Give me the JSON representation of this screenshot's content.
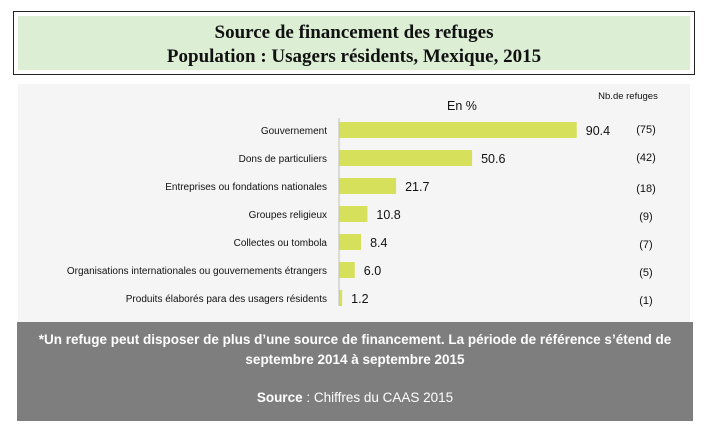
{
  "header": {
    "title_line1": "Source de financement des refuges",
    "title_line2": "Population : Usagers résidents, Mexique, 2015"
  },
  "chart_data": {
    "type": "bar",
    "orientation": "horizontal",
    "unit_label": "En %",
    "count_header": "Nb.de refuges",
    "categories": [
      "Gouvernement",
      "Dons de particuliers",
      "Entreprises ou fondations nationales",
      "Groupes religieux",
      "Collectes ou tombola",
      "Organisations internationales ou gouvernements étrangers",
      "Produits élaborés para des usagers résidents"
    ],
    "values": [
      90.4,
      50.6,
      21.7,
      10.8,
      8.4,
      6.0,
      1.2
    ],
    "value_labels": [
      "90.4",
      "50.6",
      "21.7",
      "10.8",
      "8.4",
      "6.0",
      "1.2"
    ],
    "counts": [
      "(75)",
      "(42)",
      "(18)",
      "(9)",
      "(7)",
      "(5)",
      "(1)"
    ],
    "bar_color": "#d6e05a",
    "xlim": [
      0,
      100
    ],
    "grid": false,
    "legend": "none"
  },
  "footer": {
    "note": "*Un refuge peut disposer de plus d’une source de financement. La période de référence s’étend de septembre 2014 à septembre 2015",
    "source_label": "Source",
    "source_text": " : Chiffres du CAAS 2015"
  }
}
